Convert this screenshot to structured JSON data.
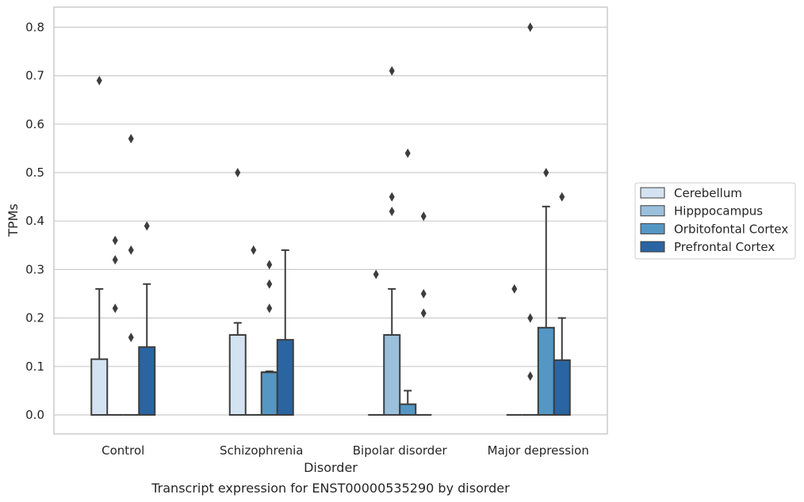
{
  "chart_data": {
    "type": "box",
    "title": "",
    "caption": "Transcript expression for ENST00000535290 by disorder",
    "xlabel": "Disorder",
    "ylabel": "TPMs",
    "ylim": [
      -0.04,
      0.84
    ],
    "yticks": [
      "0.0",
      "0.1",
      "0.2",
      "0.3",
      "0.4",
      "0.5",
      "0.6",
      "0.7",
      "0.8"
    ],
    "grid": "horizontal",
    "legend_position": "right",
    "categories": [
      "Control",
      "Schizophrenia",
      "Bipolar disorder",
      "Major depression"
    ],
    "series": [
      {
        "name": "Cerebellum",
        "color": "#d4e3f1",
        "boxes": [
          {
            "q1": 0.0,
            "median": 0.0,
            "q3": 0.115,
            "whisker_low": 0.0,
            "whisker_high": 0.26,
            "outliers": [
              0.69
            ]
          },
          {
            "q1": 0.0,
            "median": 0.0,
            "q3": 0.165,
            "whisker_low": 0.0,
            "whisker_high": 0.19,
            "outliers": [
              0.5
            ]
          },
          {
            "q1": 0.0,
            "median": 0.0,
            "q3": 0.0,
            "whisker_low": 0.0,
            "whisker_high": 0.0,
            "outliers": [
              0.29
            ]
          },
          {
            "q1": 0.0,
            "median": 0.0,
            "q3": 0.0,
            "whisker_low": 0.0,
            "whisker_high": 0.0,
            "outliers": [
              0.26
            ]
          }
        ]
      },
      {
        "name": "Hipppocampus",
        "color": "#9ac0dc",
        "boxes": [
          {
            "q1": 0.0,
            "median": 0.0,
            "q3": 0.0,
            "whisker_low": 0.0,
            "whisker_high": 0.0,
            "outliers": [
              0.22,
              0.32,
              0.36
            ]
          },
          {
            "q1": 0.0,
            "median": 0.0,
            "q3": 0.0,
            "whisker_low": 0.0,
            "whisker_high": 0.0,
            "outliers": [
              0.34
            ]
          },
          {
            "q1": 0.0,
            "median": 0.0,
            "q3": 0.165,
            "whisker_low": 0.0,
            "whisker_high": 0.26,
            "outliers": [
              0.42,
              0.45,
              0.71
            ]
          },
          {
            "q1": 0.0,
            "median": 0.0,
            "q3": 0.0,
            "whisker_low": 0.0,
            "whisker_high": 0.0,
            "outliers": [
              0.08,
              0.2,
              0.8
            ]
          }
        ]
      },
      {
        "name": "Orbitofontal Cortex",
        "color": "#5597c4",
        "boxes": [
          {
            "q1": 0.0,
            "median": 0.0,
            "q3": 0.0,
            "whisker_low": 0.0,
            "whisker_high": 0.0,
            "outliers": [
              0.16,
              0.34,
              0.57
            ]
          },
          {
            "q1": 0.0,
            "median": 0.088,
            "q3": 0.088,
            "whisker_low": 0.0,
            "whisker_high": 0.09,
            "outliers": [
              0.22,
              0.27,
              0.31
            ]
          },
          {
            "q1": 0.0,
            "median": 0.0,
            "q3": 0.022,
            "whisker_low": 0.0,
            "whisker_high": 0.05,
            "outliers": [
              0.54
            ]
          },
          {
            "q1": 0.0,
            "median": 0.0,
            "q3": 0.18,
            "whisker_low": 0.0,
            "whisker_high": 0.43,
            "outliers": [
              0.5
            ]
          }
        ]
      },
      {
        "name": "Prefrontal Cortex",
        "color": "#2a65a2",
        "boxes": [
          {
            "q1": 0.0,
            "median": 0.0,
            "q3": 0.14,
            "whisker_low": 0.0,
            "whisker_high": 0.27,
            "outliers": [
              0.39
            ]
          },
          {
            "q1": 0.0,
            "median": 0.0,
            "q3": 0.155,
            "whisker_low": 0.0,
            "whisker_high": 0.34,
            "outliers": []
          },
          {
            "q1": 0.0,
            "median": 0.0,
            "q3": 0.0,
            "whisker_low": 0.0,
            "whisker_high": 0.0,
            "outliers": [
              0.21,
              0.25,
              0.41
            ]
          },
          {
            "q1": 0.0,
            "median": 0.0,
            "q3": 0.113,
            "whisker_low": 0.0,
            "whisker_high": 0.2,
            "outliers": [
              0.45
            ]
          }
        ]
      }
    ]
  }
}
